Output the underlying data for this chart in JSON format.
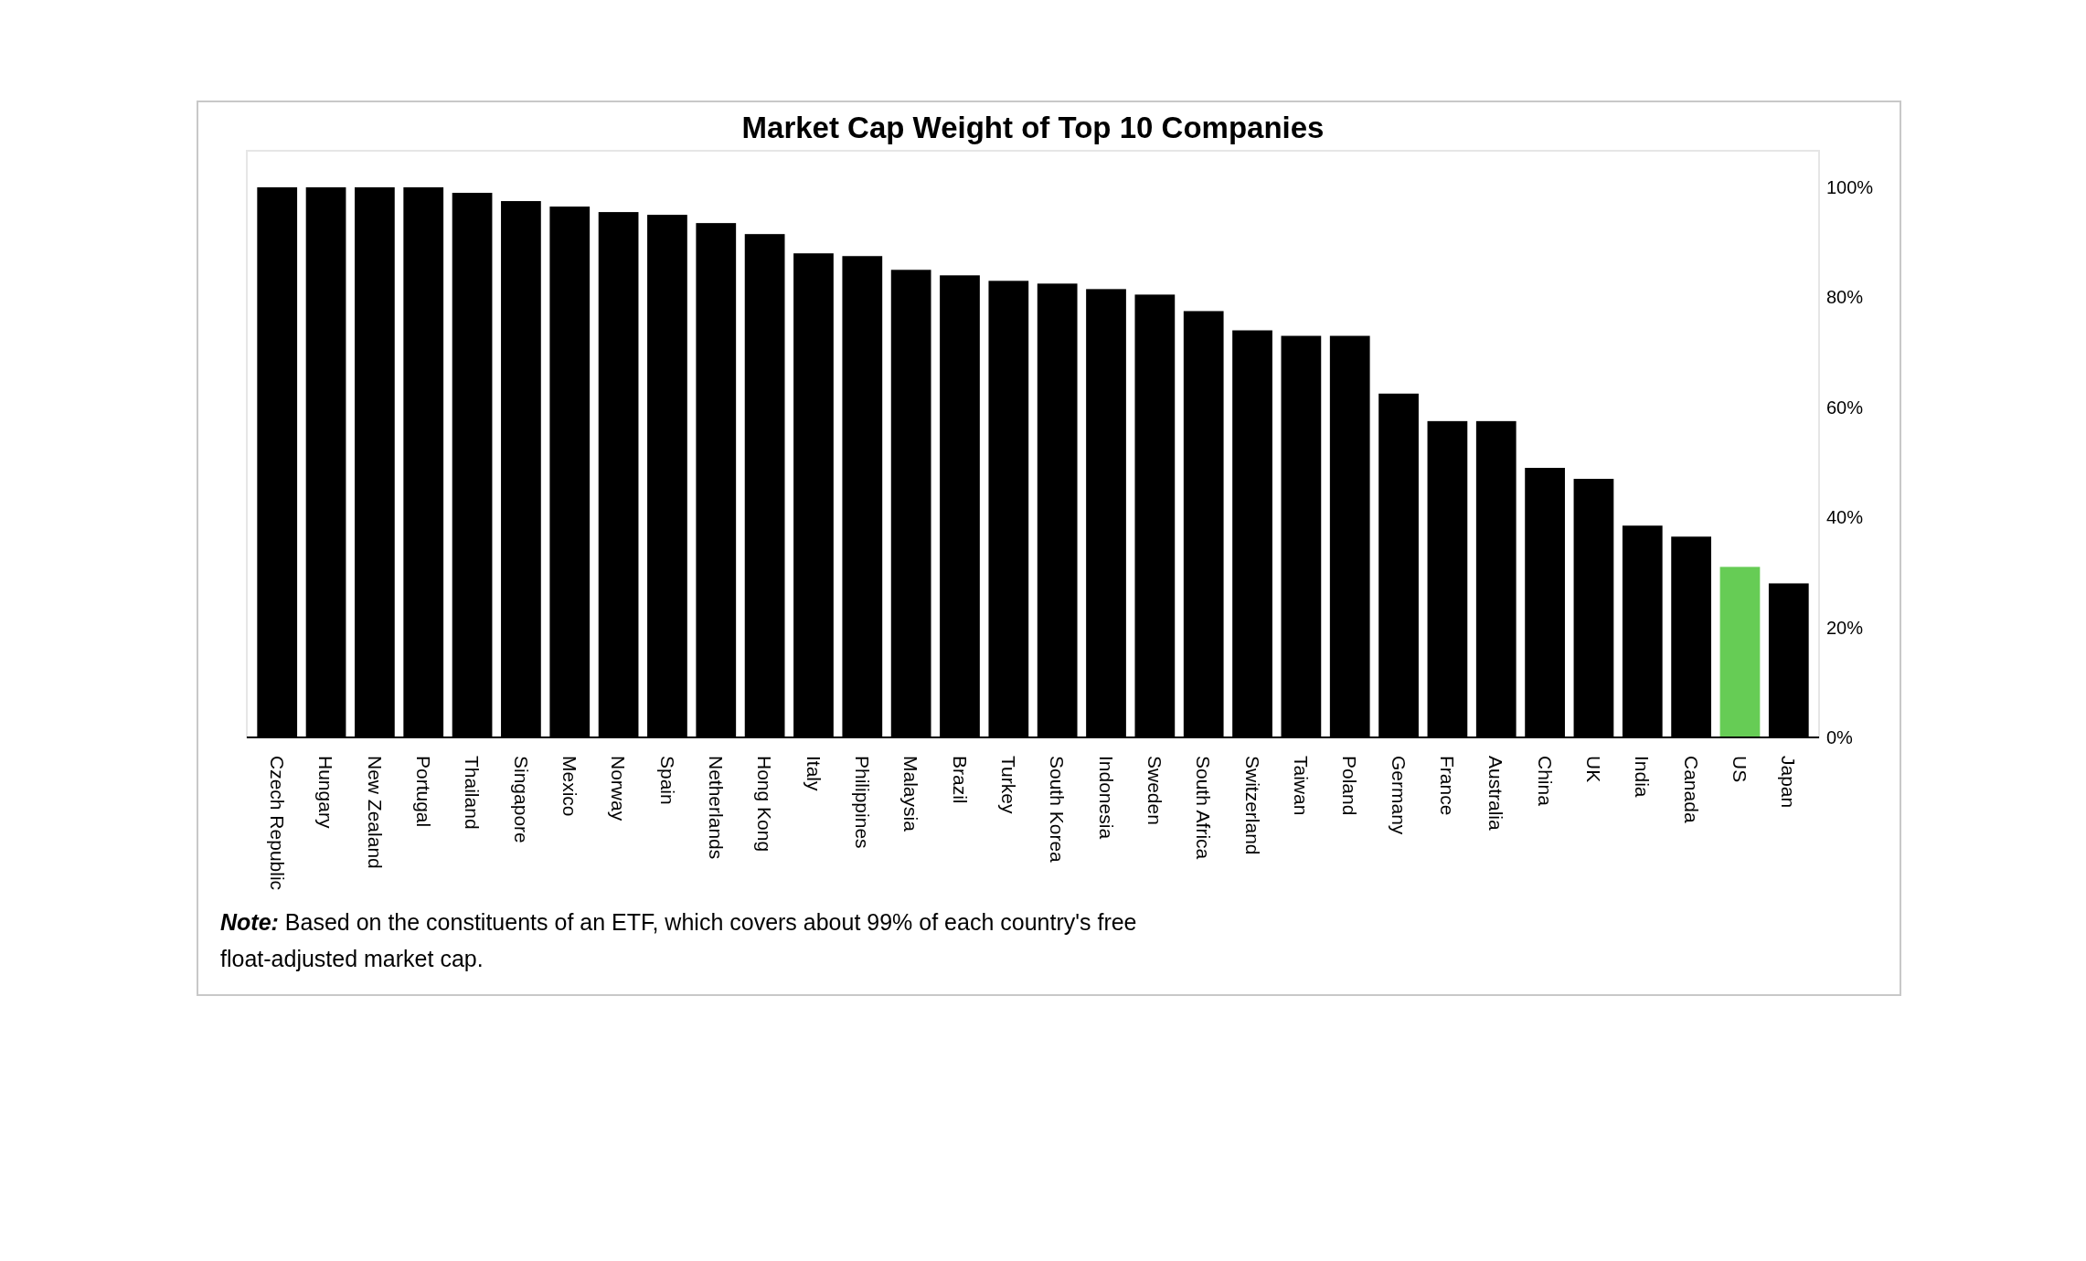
{
  "chart_data": {
    "type": "bar",
    "title": "Market Cap Weight of Top 10 Companies",
    "categories": [
      "Czech Republic",
      "Hungary",
      "New Zealand",
      "Portugal",
      "Thailand",
      "Singapore",
      "Mexico",
      "Norway",
      "Spain",
      "Netherlands",
      "Hong Kong",
      "Italy",
      "Philippines",
      "Malaysia",
      "Brazil",
      "Turkey",
      "South Korea",
      "Indonesia",
      "Sweden",
      "South Africa",
      "Switzerland",
      "Taiwan",
      "Poland",
      "Germany",
      "France",
      "Australia",
      "China",
      "UK",
      "India",
      "Canada",
      "US",
      "Japan"
    ],
    "values": [
      100,
      100,
      100,
      100,
      99,
      97.5,
      96.5,
      95.5,
      95,
      93.5,
      91.5,
      88,
      87.5,
      85,
      84,
      83,
      82.5,
      81.5,
      80.5,
      77.5,
      74,
      73,
      73,
      62.5,
      57.5,
      57.5,
      49,
      47,
      38.5,
      36.5,
      31,
      28
    ],
    "colors": [
      "#000000",
      "#000000",
      "#000000",
      "#000000",
      "#000000",
      "#000000",
      "#000000",
      "#000000",
      "#000000",
      "#000000",
      "#000000",
      "#000000",
      "#000000",
      "#000000",
      "#000000",
      "#000000",
      "#000000",
      "#000000",
      "#000000",
      "#000000",
      "#000000",
      "#000000",
      "#000000",
      "#000000",
      "#000000",
      "#000000",
      "#000000",
      "#000000",
      "#000000",
      "#000000",
      "#66cc55",
      "#000000"
    ],
    "ylim": [
      0,
      100
    ],
    "yticks": [
      {
        "value": 0,
        "label": "0%"
      },
      {
        "value": 20,
        "label": "20%"
      },
      {
        "value": 40,
        "label": "40%"
      },
      {
        "value": 60,
        "label": "60%"
      },
      {
        "value": 80,
        "label": "80%"
      },
      {
        "value": 100,
        "label": "100%"
      }
    ],
    "grid": false,
    "annotations": [
      "Note: Based on the constituents of an ETF, which covers about 99% of each country's free float-adjusted market cap."
    ]
  }
}
